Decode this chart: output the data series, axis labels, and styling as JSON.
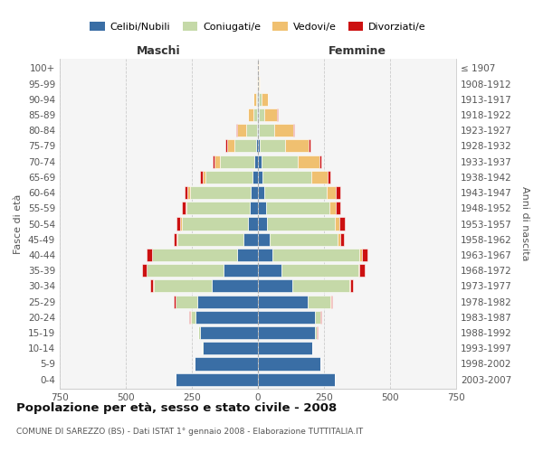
{
  "age_groups": [
    "0-4",
    "5-9",
    "10-14",
    "15-19",
    "20-24",
    "25-29",
    "30-34",
    "35-39",
    "40-44",
    "45-49",
    "50-54",
    "55-59",
    "60-64",
    "65-69",
    "70-74",
    "75-79",
    "80-84",
    "85-89",
    "90-94",
    "95-99",
    "100+"
  ],
  "birth_years": [
    "2003-2007",
    "1998-2002",
    "1993-1997",
    "1988-1992",
    "1983-1987",
    "1978-1982",
    "1973-1977",
    "1968-1972",
    "1963-1967",
    "1958-1962",
    "1953-1957",
    "1948-1952",
    "1943-1947",
    "1938-1942",
    "1933-1937",
    "1928-1932",
    "1923-1927",
    "1918-1922",
    "1913-1917",
    "1908-1912",
    "≤ 1907"
  ],
  "maschi_celibe": [
    310,
    240,
    210,
    220,
    235,
    230,
    175,
    130,
    80,
    55,
    38,
    30,
    28,
    20,
    15,
    8,
    5,
    3,
    2,
    0,
    0
  ],
  "maschi_coniugato": [
    0,
    0,
    2,
    5,
    20,
    80,
    220,
    290,
    320,
    250,
    250,
    240,
    230,
    180,
    130,
    80,
    40,
    15,
    5,
    0,
    0
  ],
  "maschi_vedovo": [
    0,
    0,
    0,
    0,
    1,
    2,
    2,
    2,
    2,
    3,
    5,
    5,
    8,
    10,
    20,
    30,
    35,
    20,
    10,
    2,
    0
  ],
  "maschi_divorziato": [
    0,
    0,
    0,
    2,
    3,
    5,
    10,
    15,
    18,
    12,
    15,
    12,
    10,
    8,
    5,
    5,
    2,
    0,
    0,
    0,
    0
  ],
  "femmine_celibe": [
    290,
    235,
    205,
    215,
    215,
    190,
    130,
    90,
    55,
    45,
    35,
    30,
    25,
    18,
    12,
    8,
    5,
    3,
    2,
    0,
    0
  ],
  "femmine_coniugato": [
    0,
    0,
    2,
    8,
    22,
    85,
    215,
    290,
    330,
    255,
    255,
    240,
    235,
    185,
    140,
    95,
    55,
    20,
    10,
    2,
    0
  ],
  "femmine_vedovo": [
    0,
    0,
    0,
    0,
    1,
    2,
    3,
    5,
    8,
    10,
    18,
    25,
    35,
    60,
    80,
    90,
    75,
    50,
    25,
    5,
    2
  ],
  "femmine_divorziato": [
    0,
    0,
    0,
    2,
    3,
    5,
    12,
    20,
    22,
    15,
    20,
    18,
    15,
    10,
    8,
    5,
    3,
    2,
    0,
    0,
    0
  ],
  "color_celibe": "#3a6ea5",
  "color_coniugato": "#c5d9a8",
  "color_vedovo": "#f0c070",
  "color_divorziato": "#cc1111",
  "title": "Popolazione per età, sesso e stato civile - 2008",
  "subtitle": "COMUNE DI SAREZZO (BS) - Dati ISTAT 1° gennaio 2008 - Elaborazione TUTTITALIA.IT",
  "xlabel_left": "Maschi",
  "xlabel_right": "Femmine",
  "ylabel_left": "Fasce di età",
  "ylabel_right": "Anni di nascita",
  "xlim": 750,
  "bg_color": "#f5f5f5",
  "grid_color": "#cccccc"
}
